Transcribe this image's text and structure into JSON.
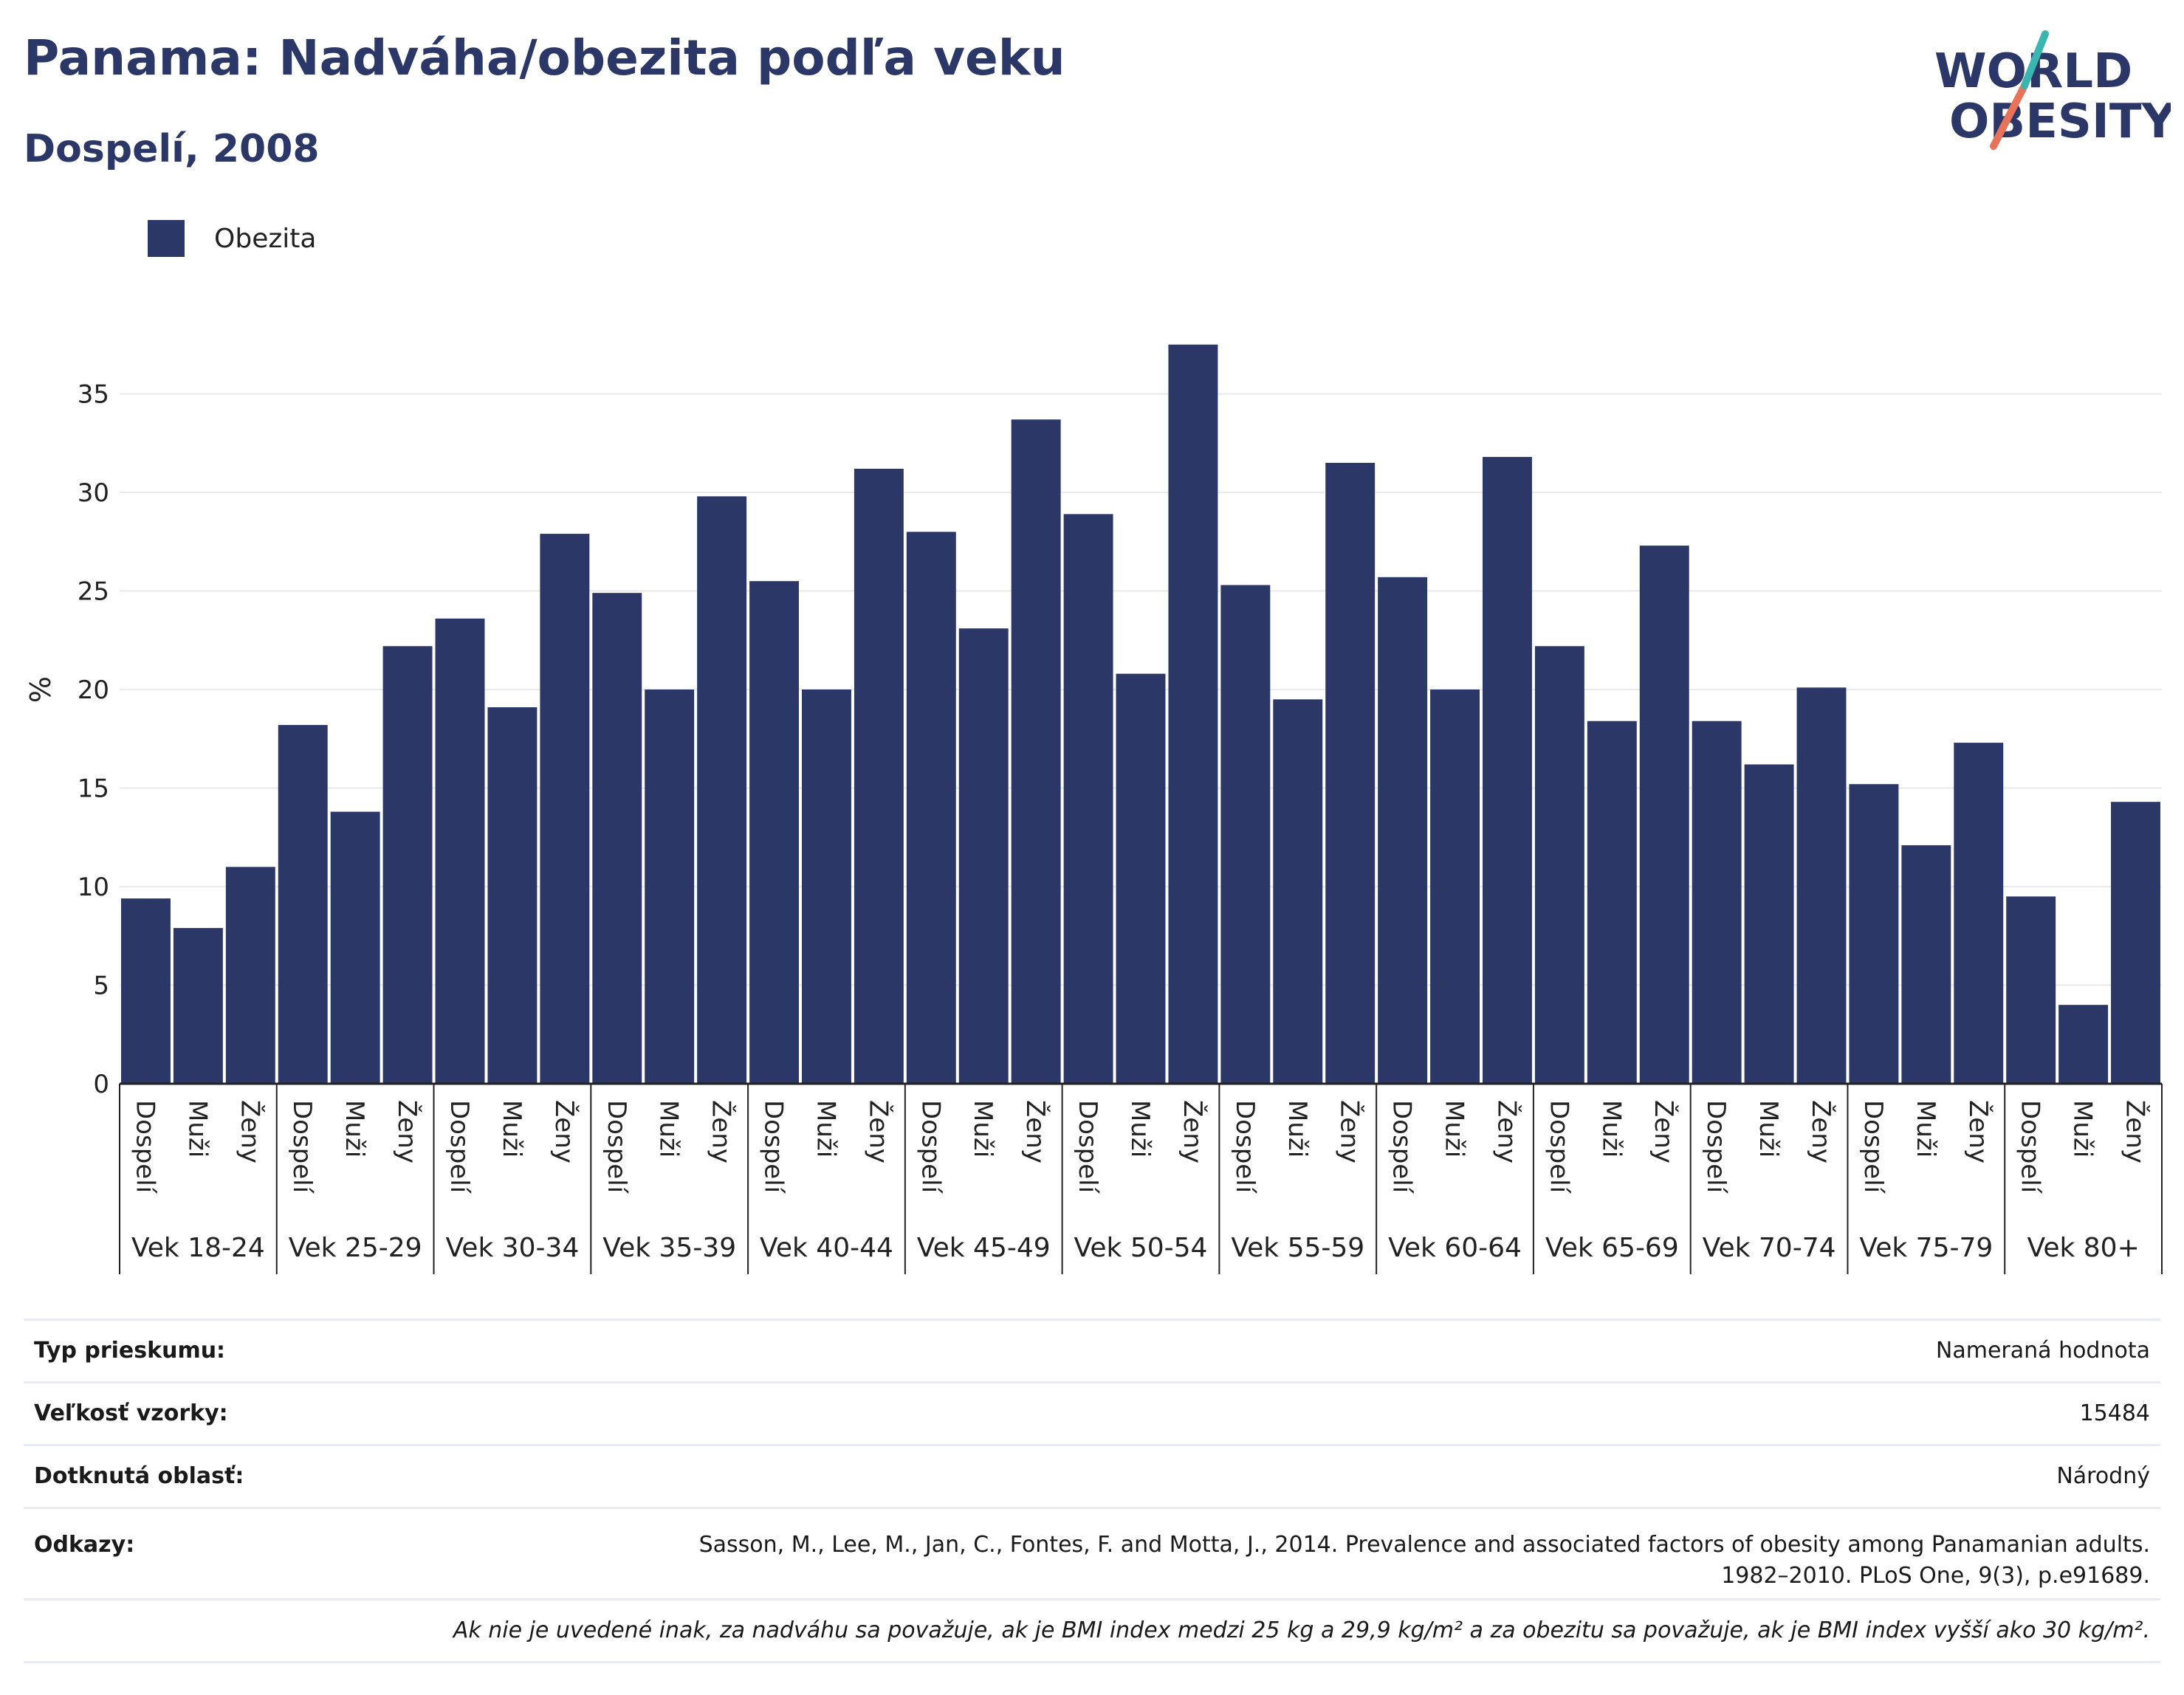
{
  "header": {
    "title": "Panama: Nadváha/obezita podľa veku",
    "subtitle": "Dospelí, 2008"
  },
  "logo": {
    "line1": "WORLD",
    "line2": "OBESITY"
  },
  "legend": {
    "label": "Obezita"
  },
  "colors": {
    "bar": "#2b3767",
    "title": "#2b3767",
    "logo_teal": "#3ab5b0",
    "logo_coral": "#e8735a"
  },
  "chart_data": {
    "type": "bar",
    "ylabel": "%",
    "ylim": [
      0,
      40
    ],
    "yticks": [
      0,
      5,
      10,
      15,
      20,
      25,
      30,
      35
    ],
    "grid": true,
    "legend_position": "top-left",
    "groups": [
      "Vek 18-24",
      "Vek 25-29",
      "Vek 30-34",
      "Vek 35-39",
      "Vek 40-44",
      "Vek 45-49",
      "Vek 50-54",
      "Vek 55-59",
      "Vek 60-64",
      "Vek 65-69",
      "Vek 70-74",
      "Vek 75-79",
      "Vek 80+"
    ],
    "subcategories": [
      "Dospelí",
      "Muži",
      "Ženy"
    ],
    "series": [
      {
        "name": "Obezita",
        "values": [
          9.4,
          7.9,
          11.0,
          18.2,
          13.8,
          22.2,
          23.6,
          19.1,
          27.9,
          24.9,
          20.0,
          29.8,
          25.5,
          20.0,
          31.2,
          28.0,
          23.1,
          33.7,
          28.9,
          20.8,
          37.5,
          25.3,
          19.5,
          31.5,
          25.7,
          20.0,
          31.8,
          22.2,
          18.4,
          27.3,
          18.4,
          16.2,
          20.1,
          15.2,
          12.1,
          17.3,
          9.5,
          4.0,
          14.3
        ]
      }
    ]
  },
  "info": {
    "survey_type_label": "Typ prieskumu:",
    "survey_type_value": "Nameraná hodnota",
    "sample_size_label": "Veľkosť vzorky:",
    "sample_size_value": "15484",
    "area_label": "Dotknutá oblasť:",
    "area_value": "Národný",
    "references_label": "Odkazy:",
    "references_line1": "Sasson, M., Lee, M., Jan, C., Fontes, F. and Motta, J., 2014. Prevalence and associated factors of obesity among Panamanian adults.",
    "references_line2": "1982–2010. PLoS One, 9(3), p.e91689.",
    "footnote": "Ak nie je uvedené inak, za nadváhu sa považuje, ak je BMI index medzi 25 kg a 29,9 kg/m² a za obezitu sa považuje, ak je BMI index vyšší ako 30 kg/m²."
  }
}
